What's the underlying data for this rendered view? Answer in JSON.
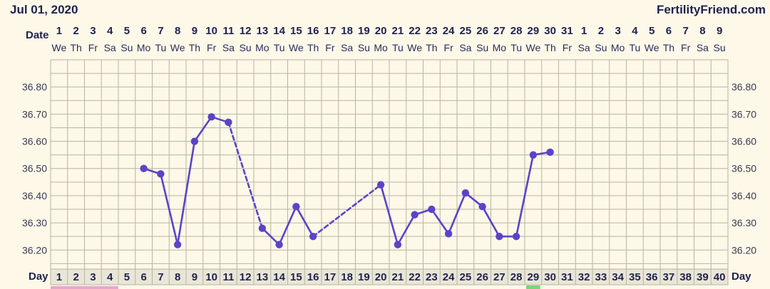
{
  "header": {
    "start_date": "Jul 01, 2020",
    "brand": "FertilityFriend.com"
  },
  "labels": {
    "date_row": "Date",
    "day_row": "Day"
  },
  "dates": [
    "1",
    "2",
    "3",
    "4",
    "5",
    "6",
    "7",
    "8",
    "9",
    "10",
    "11",
    "12",
    "13",
    "14",
    "15",
    "16",
    "17",
    "18",
    "19",
    "20",
    "21",
    "22",
    "23",
    "24",
    "25",
    "26",
    "27",
    "28",
    "29",
    "30",
    "31",
    "1",
    "2",
    "3",
    "4",
    "5",
    "6",
    "7",
    "8",
    "9"
  ],
  "weekdays": [
    "We",
    "Th",
    "Fr",
    "Sa",
    "Su",
    "Mo",
    "Tu",
    "We",
    "Th",
    "Fr",
    "Sa",
    "Su",
    "Mo",
    "Tu",
    "We",
    "Th",
    "Fr",
    "Sa",
    "Su",
    "Mo",
    "Tu",
    "We",
    "Th",
    "Fr",
    "Sa",
    "Su",
    "Mo",
    "Tu",
    "We",
    "Th",
    "Fr",
    "Sa",
    "Su",
    "Mo",
    "Tu",
    "We",
    "Th",
    "Fr",
    "Sa",
    "Su"
  ],
  "colors": {
    "line": "#5b43c9",
    "grid": "#b8b4a2",
    "background": "#fdf8e8",
    "day_row_bg": "#e9e6d8",
    "fertile_marker": "#e9a6cf",
    "green_marker": "#7cd47a"
  },
  "chart_data": {
    "type": "line",
    "ylim": [
      36.13,
      36.9
    ],
    "yticks": [
      "36.80",
      "36.70",
      "36.60",
      "36.50",
      "36.40",
      "36.30",
      "36.20"
    ],
    "days": [
      "1",
      "2",
      "3",
      "4",
      "5",
      "6",
      "7",
      "8",
      "9",
      "10",
      "11",
      "12",
      "13",
      "14",
      "15",
      "16",
      "17",
      "18",
      "19",
      "20",
      "21",
      "22",
      "23",
      "24",
      "25",
      "26",
      "27",
      "28",
      "29",
      "30",
      "31",
      "32",
      "33",
      "34",
      "35",
      "36",
      "37",
      "38",
      "39",
      "40"
    ],
    "points": [
      {
        "day": 6,
        "temp": 36.5
      },
      {
        "day": 7,
        "temp": 36.48
      },
      {
        "day": 8,
        "temp": 36.22
      },
      {
        "day": 9,
        "temp": 36.6
      },
      {
        "day": 10,
        "temp": 36.69
      },
      {
        "day": 11,
        "temp": 36.67
      },
      {
        "day": 13,
        "temp": 36.28
      },
      {
        "day": 14,
        "temp": 36.22
      },
      {
        "day": 15,
        "temp": 36.36
      },
      {
        "day": 16,
        "temp": 36.25
      },
      {
        "day": 20,
        "temp": 36.44
      },
      {
        "day": 21,
        "temp": 36.22
      },
      {
        "day": 22,
        "temp": 36.33
      },
      {
        "day": 23,
        "temp": 36.35
      },
      {
        "day": 24,
        "temp": 36.26
      },
      {
        "day": 25,
        "temp": 36.41
      },
      {
        "day": 26,
        "temp": 36.36
      },
      {
        "day": 27,
        "temp": 36.25
      },
      {
        "day": 28,
        "temp": 36.25
      },
      {
        "day": 29,
        "temp": 36.55
      },
      {
        "day": 30,
        "temp": 36.56
      }
    ],
    "segments": [
      {
        "from": 6,
        "to": 7,
        "style": "solid"
      },
      {
        "from": 7,
        "to": 8,
        "style": "solid"
      },
      {
        "from": 8,
        "to": 9,
        "style": "solid"
      },
      {
        "from": 9,
        "to": 10,
        "style": "solid"
      },
      {
        "from": 10,
        "to": 11,
        "style": "solid"
      },
      {
        "from": 11,
        "to": 13,
        "style": "dashed"
      },
      {
        "from": 13,
        "to": 14,
        "style": "solid"
      },
      {
        "from": 14,
        "to": 15,
        "style": "solid"
      },
      {
        "from": 15,
        "to": 16,
        "style": "solid"
      },
      {
        "from": 16,
        "to": 20,
        "style": "dashed"
      },
      {
        "from": 20,
        "to": 21,
        "style": "solid"
      },
      {
        "from": 21,
        "to": 22,
        "style": "solid"
      },
      {
        "from": 22,
        "to": 23,
        "style": "solid"
      },
      {
        "from": 23,
        "to": 24,
        "style": "solid"
      },
      {
        "from": 24,
        "to": 25,
        "style": "solid"
      },
      {
        "from": 25,
        "to": 26,
        "style": "solid"
      },
      {
        "from": 26,
        "to": 27,
        "style": "solid"
      },
      {
        "from": 27,
        "to": 28,
        "style": "solid"
      },
      {
        "from": 28,
        "to": 29,
        "style": "solid"
      },
      {
        "from": 29,
        "to": 30,
        "style": "solid"
      }
    ],
    "grid": true
  }
}
